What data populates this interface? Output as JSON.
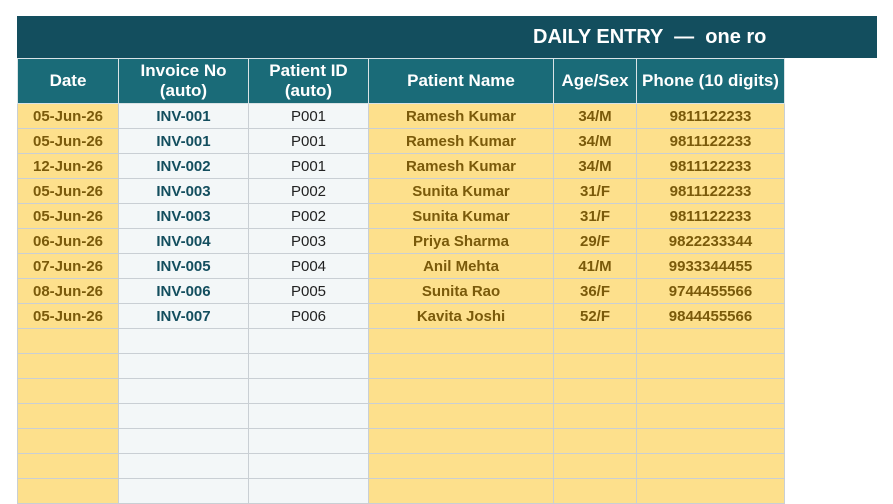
{
  "banner": {
    "title": "DAILY ENTRY  —  one ro"
  },
  "columns": [
    "Date",
    "Invoice No (auto)",
    "Patient ID (auto)",
    "Patient Name",
    "Age/Sex",
    "Phone (10 digits)"
  ],
  "rows": [
    [
      "05-Jun-26",
      "INV-001",
      "P001",
      "Ramesh Kumar",
      "34/M",
      "9811122233"
    ],
    [
      "05-Jun-26",
      "INV-001",
      "P001",
      "Ramesh Kumar",
      "34/M",
      "9811122233"
    ],
    [
      "12-Jun-26",
      "INV-002",
      "P001",
      "Ramesh Kumar",
      "34/M",
      "9811122233"
    ],
    [
      "05-Jun-26",
      "INV-003",
      "P002",
      "Sunita Kumar",
      "31/F",
      "9811122233"
    ],
    [
      "05-Jun-26",
      "INV-003",
      "P002",
      "Sunita Kumar",
      "31/F",
      "9811122233"
    ],
    [
      "06-Jun-26",
      "INV-004",
      "P003",
      "Priya Sharma",
      "29/F",
      "9822233344"
    ],
    [
      "07-Jun-26",
      "INV-005",
      "P004",
      "Anil Mehta",
      "41/M",
      "9933344455"
    ],
    [
      "08-Jun-26",
      "INV-006",
      "P005",
      "Sunita Rao",
      "36/F",
      "9744455566"
    ],
    [
      "05-Jun-26",
      "INV-007",
      "P006",
      "Kavita Joshi",
      "52/F",
      "9844455566"
    ]
  ],
  "colors": {
    "banner": "#134e5e",
    "header": "#1a6b78",
    "entry_cell": "#fde08c",
    "auto_cell": "#f3f7f8"
  }
}
